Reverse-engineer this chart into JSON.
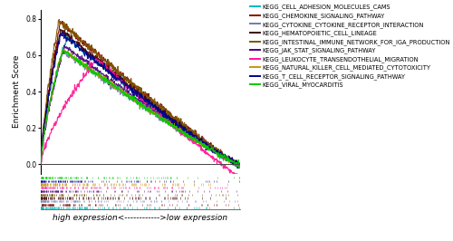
{
  "pathways": [
    "KEGG_CELL_ADHESION_MOLECULES_CAMS",
    "KEGG_CHEMOKINE_SIGNALING_PATHWAY",
    "KEGG_CYTOKINE_CYTOKINE_RECEPTOR_INTERACTION",
    "KEGG_HEMATOPOIETIC_CELL_LINEAGE",
    "KEGG_INTESTINAL_IMMUNE_NETWORK_FOR_IGA_PRODUCTION",
    "KEGG_JAK_STAT_SIGNALING_PATHWAY",
    "KEGG_LEUKOCYTE_TRANSENDOTHELIAL_MIGRATION",
    "KEGG_NATURAL_KILLER_CELL_MEDIATED_CYTOTOXICITY",
    "KEGG_T_CELL_RECEPTOR_SIGNALING_PATHWAY",
    "KEGG_VIRAL_MYOCARDITIS"
  ],
  "colors": [
    "#00B8B8",
    "#8B0000",
    "#6B7DB3",
    "#3D0000",
    "#7B5800",
    "#4B0082",
    "#FF1493",
    "#C8960C",
    "#00008B",
    "#00CC00"
  ],
  "n_points": 500,
  "peak_positions": [
    0.13,
    0.1,
    0.11,
    0.1,
    0.09,
    0.12,
    0.28,
    0.11,
    0.1,
    0.11
  ],
  "peak_values": [
    0.7,
    0.78,
    0.62,
    0.74,
    0.79,
    0.65,
    0.58,
    0.63,
    0.72,
    0.63
  ],
  "end_values": [
    -0.015,
    -0.005,
    -0.005,
    -0.005,
    -0.005,
    -0.005,
    -0.07,
    -0.005,
    -0.005,
    -0.005
  ],
  "ylim": [
    -0.05,
    0.85
  ],
  "yticks": [
    0.0,
    0.2,
    0.4,
    0.6,
    0.8
  ],
  "ylabel": "Enrichment Score",
  "xlabel": "high expression<------------>low expression",
  "background_color": "#ffffff",
  "legend_fontsize": 4.8,
  "axis_fontsize": 6.5
}
